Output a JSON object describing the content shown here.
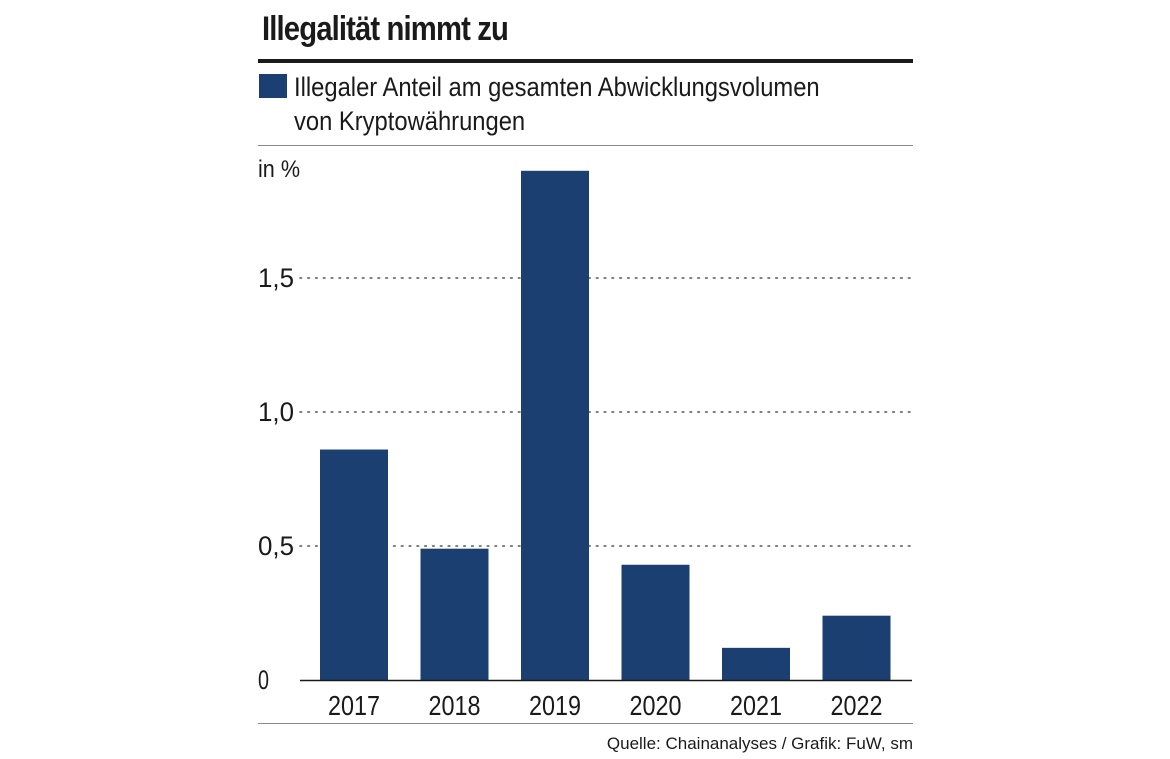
{
  "chart_data": {
    "type": "bar",
    "title": "Illegalität nimmt zu",
    "series": [
      {
        "name": "Illegaler Anteil am gesamten Abwicklungsvolumen von Kryptowährungen",
        "values": [
          0.86,
          0.49,
          1.9,
          0.43,
          0.12,
          0.24
        ]
      }
    ],
    "categories": [
      "2017",
      "2018",
      "2019",
      "2020",
      "2021",
      "2022"
    ],
    "values": [
      0.86,
      0.49,
      1.9,
      0.43,
      0.12,
      0.24
    ],
    "ylabel": "in %",
    "xlabel": "",
    "ylim": [
      0,
      1.9
    ],
    "yticks": [
      0,
      0.5,
      1.0,
      1.5
    ],
    "ytick_labels": [
      "0",
      "0,5",
      "1,0",
      "1,5"
    ],
    "grid": "dotted horizontal",
    "legend_position": "top-left",
    "bar_color": "#1b3f70"
  },
  "header": {
    "title": "Illegalität nimmt zu"
  },
  "legend": {
    "line1": "Illegaler Anteil am gesamten Abwicklungsvolumen",
    "line2": "von Kryptowährungen"
  },
  "axis": {
    "unit": "in %"
  },
  "footer": {
    "source": "Quelle: Chainanalyses / Grafik: FuW, sm"
  }
}
